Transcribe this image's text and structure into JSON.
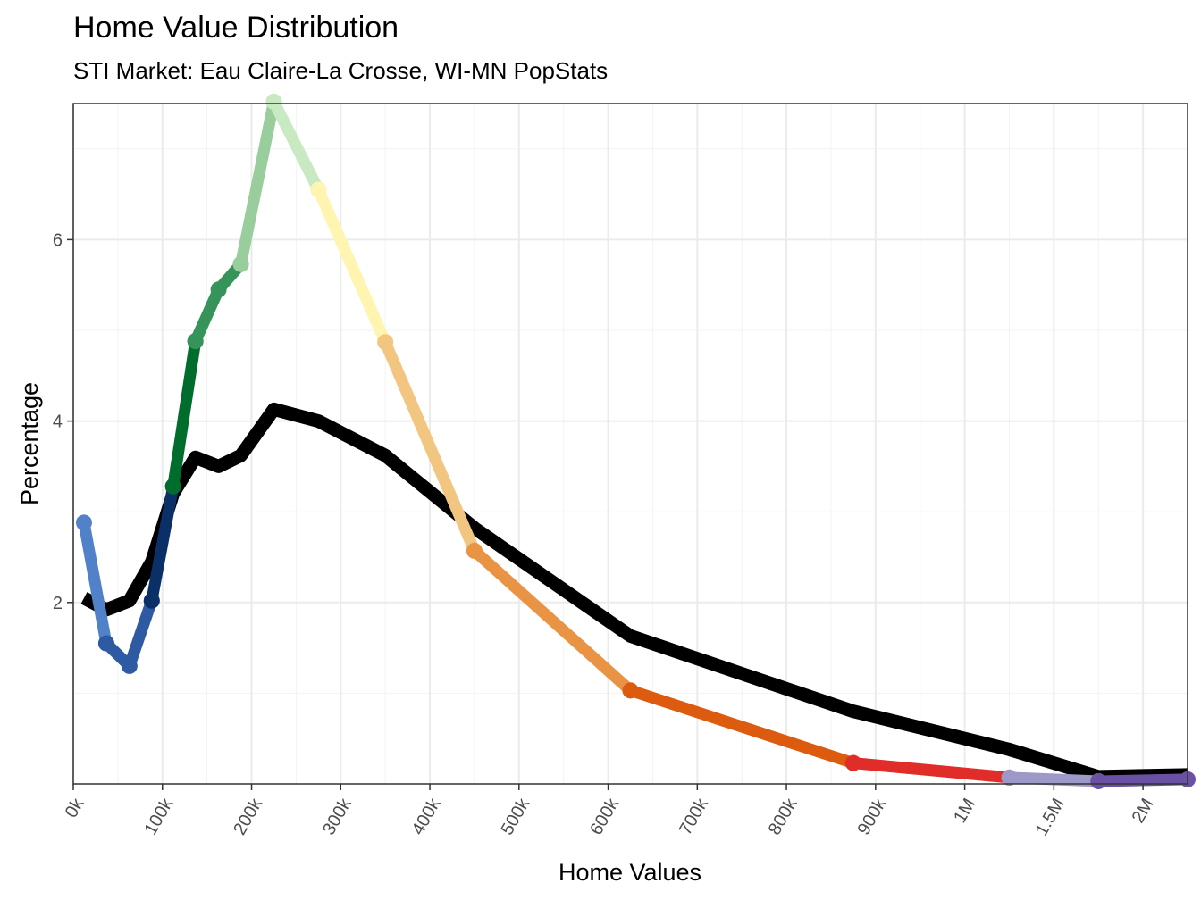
{
  "chart_data": {
    "type": "line",
    "title": "Home Value Distribution",
    "subtitle": "STI Market: Eau Claire-La Crosse, WI-MN PopStats",
    "xlabel": "Home Values",
    "ylabel": "Percentage",
    "x_ticks": [
      "0k",
      "100k",
      "200k",
      "300k",
      "400k",
      "500k",
      "600k",
      "700k",
      "800k",
      "900k",
      "1M",
      "1.5M",
      "2M"
    ],
    "y_ticks": [
      2,
      4,
      6
    ],
    "ylim": [
      0.0,
      7.5
    ],
    "grid": true,
    "legend": "none",
    "x_positions_note_free": true,
    "x_scale": [
      0,
      12.5
    ],
    "series": [
      {
        "color": "#000000",
        "x": [
          0.12,
          0.37,
          0.63,
          0.88,
          1.12,
          1.37,
          1.63,
          1.88,
          2.25,
          2.75,
          3.5,
          4.5,
          6.25,
          8.75,
          10.5,
          11.5,
          12.5
        ],
        "values": [
          2.05,
          1.92,
          2.02,
          2.45,
          3.2,
          3.6,
          3.5,
          3.62,
          4.13,
          4.0,
          3.62,
          2.82,
          1.63,
          0.8,
          0.38,
          0.08,
          0.1
        ]
      },
      {
        "color": "#5182c9",
        "x": [
          0.12,
          0.37
        ],
        "values": [
          2.88,
          1.55
        ]
      },
      {
        "color": "#2e5aa3",
        "x": [
          0.37,
          0.63,
          0.88
        ],
        "values": [
          1.55,
          1.3,
          2.02
        ]
      },
      {
        "color": "#0b3068",
        "x": [
          0.88,
          1.12
        ],
        "values": [
          2.02,
          3.28
        ]
      },
      {
        "color": "#006d2c",
        "x": [
          1.12,
          1.37
        ],
        "values": [
          3.28,
          4.88
        ]
      },
      {
        "color": "#36935a",
        "x": [
          1.37,
          1.63,
          1.88
        ],
        "values": [
          4.88,
          5.45,
          5.73
        ]
      },
      {
        "color": "#99cd9d",
        "x": [
          1.88,
          2.25
        ],
        "values": [
          5.73,
          7.52
        ]
      },
      {
        "color": "#c8e9c2",
        "x": [
          2.25,
          2.75
        ],
        "values": [
          7.52,
          6.55
        ]
      },
      {
        "color": "#fff5b0",
        "x": [
          2.75,
          3.5
        ],
        "values": [
          6.55,
          4.87
        ]
      },
      {
        "color": "#f2c580",
        "x": [
          3.5,
          4.5
        ],
        "values": [
          4.87,
          2.57
        ]
      },
      {
        "color": "#e99445",
        "x": [
          4.5,
          6.25
        ],
        "values": [
          2.57,
          1.03
        ]
      },
      {
        "color": "#dc5b0f",
        "x": [
          6.25,
          8.75
        ],
        "values": [
          1.03,
          0.23
        ]
      },
      {
        "color": "#e02d29",
        "x": [
          8.75,
          10.5
        ],
        "values": [
          0.23,
          0.07
        ]
      },
      {
        "color": "#9c99c9",
        "x": [
          10.5,
          11.5
        ],
        "values": [
          0.07,
          0.03
        ]
      },
      {
        "color": "#6a51a3",
        "x": [
          11.5,
          12.5
        ],
        "values": [
          0.03,
          0.05
        ]
      }
    ]
  }
}
